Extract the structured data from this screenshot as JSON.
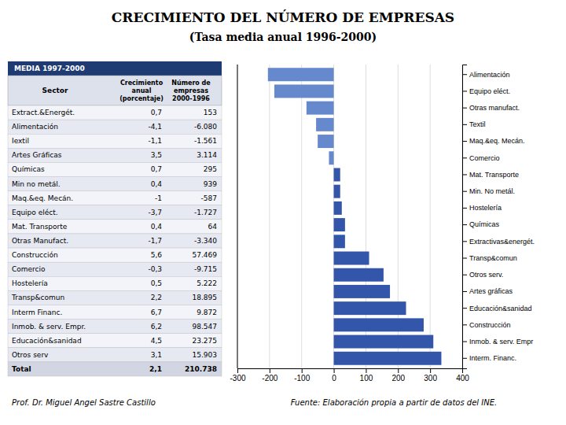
{
  "chart_data": [
    {
      "type": "bar",
      "orientation": "horizontal",
      "title": "CRECIMIENTO DEL NÚMERO DE EMPRESAS",
      "subtitle": "(Tasa media anual 1996-2000)",
      "annotations": [
        "Fuente: Elaboración propia a partir de datos del INE.",
        "Prof. Dr. Miguel Angel Sastre Castillo"
      ],
      "categories": [
        "Alimentación",
        "Equipo eléct.",
        "Otras manufact.",
        "Textil",
        "Maq.&eq. Mecán.",
        "Comercio",
        "Mat. Transporte",
        "Min. No metál.",
        "Hostelería",
        "Químicas",
        "Extractivas&energét.",
        "Transp&comun",
        "Otros serv.",
        "Artes gráficas",
        "Educación&sanidad",
        "Construcción",
        "Inmob. & serv. Empr",
        "Interm. Financ."
      ],
      "values": [
        -205,
        -185,
        -85,
        -55,
        -50,
        -15,
        20,
        20,
        25,
        35,
        35,
        110,
        155,
        175,
        225,
        280,
        310,
        335
      ],
      "colors": [
        "#6688cc",
        "#6688cc",
        "#6688cc",
        "#6688cc",
        "#6688cc",
        "#6688cc",
        "#3355aa",
        "#3355aa",
        "#3355aa",
        "#3355aa",
        "#3355aa",
        "#3355aa",
        "#3355aa",
        "#3355aa",
        "#3355aa",
        "#3355aa",
        "#3355aa",
        "#3355aa"
      ],
      "xlim": [
        -300,
        400
      ],
      "xticks": [
        -300,
        -200,
        -100,
        0,
        100,
        200,
        300,
        400
      ],
      "grid": true
    },
    {
      "type": "table",
      "title": "MEDIA 1997-2000",
      "columns": [
        "Sector",
        "Crecimiento\nanual\n(porcentaje)",
        "Número de\nempresas\n2000-1996"
      ],
      "rows": [
        [
          "Extract.&Energét.",
          "0,7",
          "153"
        ],
        [
          "Alimentación",
          "-4,1",
          "-6.080"
        ],
        [
          "Iextil",
          "-1,1",
          "-1.561"
        ],
        [
          "Artes Gráficas",
          "3,5",
          "3.114"
        ],
        [
          "Químicas",
          "0,7",
          "295"
        ],
        [
          "Min no metál.",
          "0,4",
          "939"
        ],
        [
          "Maq.&eq. Mecán.",
          "-1",
          "-587"
        ],
        [
          "Equipo eléct.",
          "-3,7",
          "-1.727"
        ],
        [
          "Mat. Transporte",
          "0,4",
          "64"
        ],
        [
          "Otras Manufact.",
          "-1,7",
          "-3.340"
        ],
        [
          "Construcción",
          "5,6",
          "57.469"
        ],
        [
          "Comercio",
          "-0,3",
          "-9.715"
        ],
        [
          "Hostelería",
          "0,5",
          "5.222"
        ],
        [
          "Transp&comun",
          "2,2",
          "18.895"
        ],
        [
          "Interm Financ.",
          "6,7",
          "9.872"
        ],
        [
          "Inmob. & serv. Empr.",
          "6,2",
          "98.547"
        ],
        [
          "Educación&sanidad",
          "4,5",
          "23.275"
        ],
        [
          "Otros serv",
          "3,1",
          "15.903"
        ],
        [
          "Total",
          "2,1",
          "210.738"
        ]
      ]
    }
  ]
}
